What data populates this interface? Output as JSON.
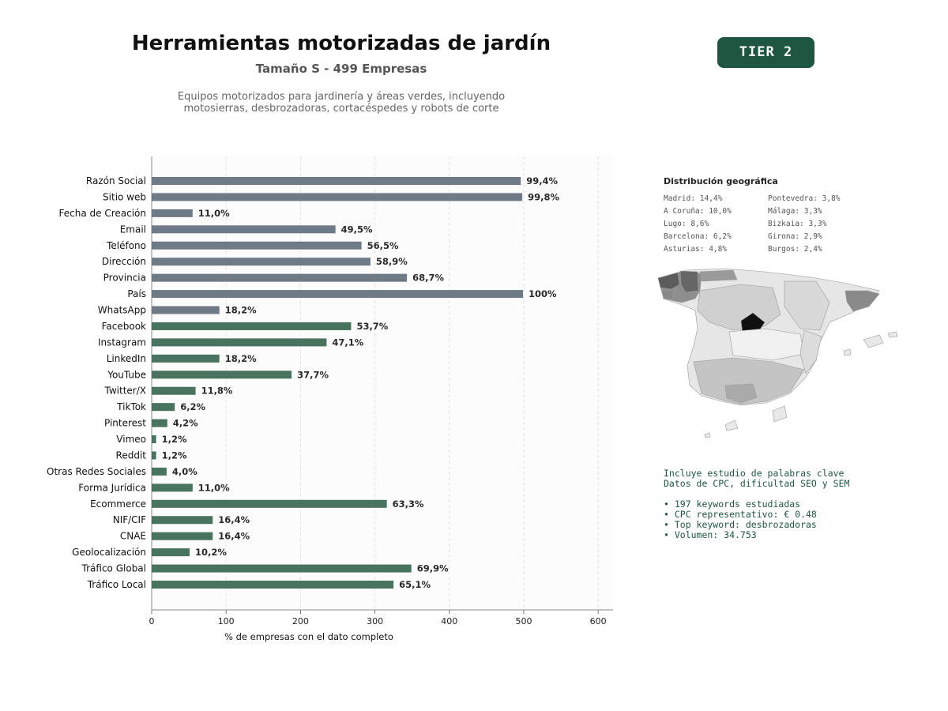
{
  "header": {
    "title": "Herramientas motorizadas de jardín",
    "subtitle": "Tamaño S - 499 Empresas",
    "description_line1": "Equipos motorizados para jardinería y áreas verdes, incluyendo",
    "description_line2": "motosierras, desbrozadoras, cortacéspedes y robots de corte",
    "tier_badge": "TIER 2"
  },
  "colors": {
    "gray_bar": "#6e7b86",
    "green_bar": "#47735f",
    "badge": "#1e5641",
    "keyword_text": "#1e5641"
  },
  "chart_data": {
    "type": "bar",
    "orientation": "horizontal",
    "xlabel": "% de empresas con el dato completo",
    "xlim": [
      0,
      620
    ],
    "xticks": [
      0,
      100,
      200,
      300,
      400,
      500,
      600
    ],
    "grid": "vertical dashed",
    "categories": [
      "Razón Social",
      "Sitio web",
      "Fecha de Creación",
      "Email",
      "Teléfono",
      "Dirección",
      "Provincia",
      "País",
      "WhatsApp",
      "Facebook",
      "Instagram",
      "LinkedIn",
      "YouTube",
      "Twitter/X",
      "TikTok",
      "Pinterest",
      "Vimeo",
      "Reddit",
      "Otras Redes Sociales",
      "Forma Jurídica",
      "Ecommerce",
      "NIF/CIF",
      "CNAE",
      "Geolocalización",
      "Tráfico Global",
      "Tráfico Local"
    ],
    "values": [
      496,
      498,
      55,
      247,
      282,
      294,
      343,
      499,
      91,
      268,
      235,
      91,
      188,
      59,
      31,
      21,
      6,
      6,
      20,
      55,
      316,
      82,
      82,
      51,
      349,
      325
    ],
    "labels": [
      "99,4%",
      "99,8%",
      "11,0%",
      "49,5%",
      "56,5%",
      "58,9%",
      "68,7%",
      "100%",
      "18,2%",
      "53,7%",
      "47,1%",
      "18,2%",
      "37,7%",
      "11,8%",
      "6,2%",
      "4,2%",
      "1,2%",
      "1,2%",
      "4,0%",
      "11,0%",
      "63,3%",
      "16,4%",
      "16,4%",
      "10,2%",
      "69,9%",
      "65,1%"
    ],
    "colors": [
      "gray",
      "gray",
      "gray",
      "gray",
      "gray",
      "gray",
      "gray",
      "gray",
      "gray",
      "green",
      "green",
      "green",
      "green",
      "green",
      "green",
      "green",
      "green",
      "green",
      "green",
      "green",
      "green",
      "green",
      "green",
      "green",
      "green",
      "green"
    ]
  },
  "geo": {
    "title": "Distribución geográfica",
    "items": [
      "Madrid: 14,4%",
      "A Coruña: 10,0%",
      "Lugo: 8,6%",
      "Barcelona: 6,2%",
      "Asturias: 4,8%",
      "Pontevedra: 3,8%",
      "Málaga: 3,3%",
      "Bizkaia: 3,3%",
      "Girona: 2,9%",
      "Burgos: 2,4%"
    ]
  },
  "keywords": {
    "line1": "Incluye estudio de palabras clave",
    "line2": "Datos de CPC, dificultad SEO y SEM",
    "bullet1": "• 197 keywords estudiadas",
    "bullet2": "• CPC representativo: € 0.48",
    "bullet3": "• Top keyword: desbrozadoras",
    "bullet4": "• Volumen: 34.753"
  }
}
